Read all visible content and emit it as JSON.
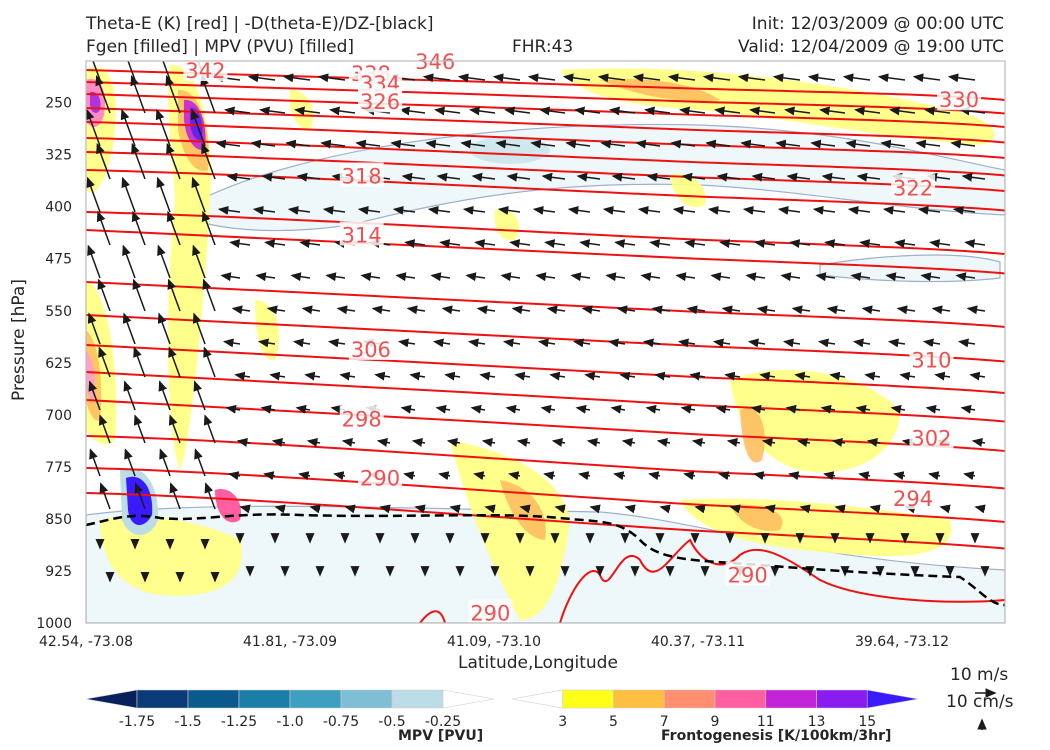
{
  "header": {
    "title_line1": "Theta-E (K) [red] | -D(theta-E)/DZ-[black]",
    "title_line2": "Fgen [filled] | MPV (PVU) [filled]",
    "fhr": "FHR:43",
    "init": "Init: 12/03/2009 @ 00:00 UTC",
    "valid": "Valid: 12/04/2009 @ 19:00 UTC"
  },
  "chart_data": {
    "type": "cross-section contour",
    "xlabel": "Latitude,Longitude",
    "ylabel": "Pressure [hPa]",
    "x_ticks": [
      "42.54, -73.08",
      "41.81, -73.09",
      "41.09, -73.10",
      "40.37, -73.11",
      "39.64, -73.12"
    ],
    "y_ticks": [
      250,
      325,
      400,
      475,
      550,
      625,
      700,
      775,
      850,
      925,
      1000
    ],
    "ylim": [
      1000,
      190
    ],
    "theta_e_labels": [
      {
        "value": "342",
        "x": 0.13,
        "p": 203
      },
      {
        "value": "346",
        "x": 0.38,
        "p": 190
      },
      {
        "value": "338",
        "x": 0.31,
        "p": 207
      },
      {
        "value": "334",
        "x": 0.32,
        "p": 222
      },
      {
        "value": "326",
        "x": 0.32,
        "p": 248
      },
      {
        "value": "330",
        "x": 0.95,
        "p": 245
      },
      {
        "value": "318",
        "x": 0.3,
        "p": 355
      },
      {
        "value": "322",
        "x": 0.9,
        "p": 372
      },
      {
        "value": "314",
        "x": 0.3,
        "p": 440
      },
      {
        "value": "306",
        "x": 0.31,
        "p": 605
      },
      {
        "value": "310",
        "x": 0.92,
        "p": 620
      },
      {
        "value": "298",
        "x": 0.3,
        "p": 705
      },
      {
        "value": "302",
        "x": 0.92,
        "p": 733
      },
      {
        "value": "290",
        "x": 0.32,
        "p": 790
      },
      {
        "value": "294",
        "x": 0.9,
        "p": 820
      },
      {
        "value": "290",
        "x": 0.72,
        "p": 930
      },
      {
        "value": "290",
        "x": 0.44,
        "p": 985
      }
    ],
    "wind_scale_labels": [
      "10 m/s",
      "10 cm/s"
    ]
  },
  "colorbars": {
    "mpv": {
      "label": "MPV [PVU]",
      "ticks": [
        "-1.75",
        "-1.5",
        "-1.25",
        "-1.0",
        "-0.75",
        "-0.5",
        "-0.25"
      ],
      "colors": [
        "#08205c",
        "#0b3a78",
        "#0a5a8e",
        "#1a7ea6",
        "#3f9fc0",
        "#7fbfd4",
        "#bcdde5",
        "#ffffff"
      ]
    },
    "fgen": {
      "label": "Frontogenesis [K/100km/3hr]",
      "ticks": [
        "3",
        "5",
        "7",
        "9",
        "11",
        "13",
        "15"
      ],
      "colors": [
        "#ffffff",
        "#ffff1a",
        "#ffbf40",
        "#ff8f70",
        "#ff5fa0",
        "#c424d8",
        "#8a1cf0",
        "#3a1aff"
      ]
    }
  }
}
